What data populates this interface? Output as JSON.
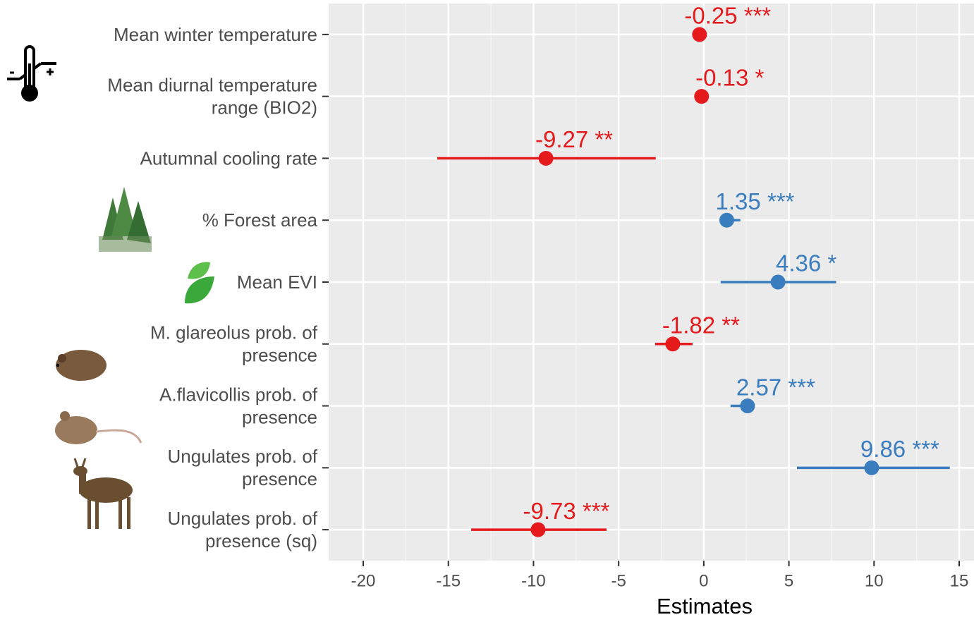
{
  "chart_data": {
    "type": "forest",
    "x_label": "Estimates",
    "categories": [
      [
        "Mean winter temperature"
      ],
      [
        "Mean diurnal temperature",
        "range (BIO2)"
      ],
      [
        "Autumnal cooling rate"
      ],
      [
        "% Forest area"
      ],
      [
        "Mean EVI"
      ],
      [
        "M. glareolus prob. of",
        "presence"
      ],
      [
        "A.flavicollis prob. of",
        "presence"
      ],
      [
        "Ungulates prob. of",
        "presence"
      ],
      [
        "Ungulates prob. of",
        "presence (sq)"
      ]
    ],
    "values": [
      -0.25,
      -0.13,
      -9.27,
      1.35,
      4.36,
      -1.82,
      2.57,
      9.86,
      -9.73
    ],
    "value_labels": [
      "-0.25 ***",
      "-0.13 *",
      "-9.27 **",
      "1.35 ***",
      "4.36 *",
      "-1.82 **",
      "2.57 ***",
      "9.86 ***",
      "-9.73 ***"
    ],
    "ci_low": [
      -0.35,
      -0.25,
      -15.65,
      0.99,
      0.99,
      -2.86,
      1.57,
      5.47,
      -13.66
    ],
    "ci_high": [
      -0.15,
      -0.01,
      -2.82,
      2.15,
      7.78,
      -0.66,
      2.48,
      14.45,
      -5.71
    ],
    "colors": [
      "#e41a1c",
      "#e41a1c",
      "#e41a1c",
      "#3a7dbf",
      "#3a7dbf",
      "#e41a1c",
      "#3a7dbf",
      "#3a7dbf",
      "#e41a1c"
    ],
    "xlim": [
      -22.03,
      15.87
    ],
    "xticks": [
      -20,
      -15,
      -10,
      -5,
      0,
      5,
      10,
      15
    ],
    "grid": true
  }
}
